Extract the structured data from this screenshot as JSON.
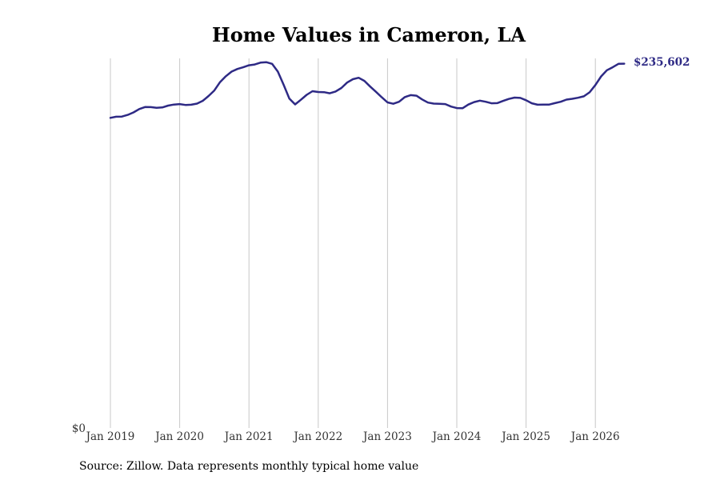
{
  "chart_data": {
    "type": "line",
    "title": "Home Values in Cameron, LA",
    "xlabel": "",
    "ylabel": "",
    "x_tick_labels": [
      "Jan 2019",
      "Jan 2020",
      "Jan 2021",
      "Jan 2022",
      "Jan 2023",
      "Jan 2024",
      "Jan 2025",
      "Jan 2026"
    ],
    "y_tick_labels": [
      "$0"
    ],
    "ylim": [
      0,
      238000
    ],
    "grid": "vertical",
    "line_color": "#2e2a85",
    "final_value_label": "$235,602",
    "source": "Source: Zillow. Data represents monthly typical home value",
    "series": [
      {
        "x": [
          "2019-01",
          "2019-02",
          "2019-03",
          "2019-04",
          "2019-05",
          "2019-06",
          "2019-07",
          "2019-08",
          "2019-09",
          "2019-10",
          "2019-11",
          "2019-12",
          "2020-01",
          "2020-02",
          "2020-03",
          "2020-04",
          "2020-05",
          "2020-06",
          "2020-07",
          "2020-08",
          "2020-09",
          "2020-10",
          "2020-11",
          "2020-12",
          "2021-01",
          "2021-02",
          "2021-03",
          "2021-04",
          "2021-05",
          "2021-06",
          "2021-07",
          "2021-08",
          "2021-09",
          "2021-10",
          "2021-11",
          "2021-12",
          "2022-01",
          "2022-02",
          "2022-03",
          "2022-04",
          "2022-05",
          "2022-06",
          "2022-07",
          "2022-08",
          "2022-09",
          "2022-10",
          "2022-11",
          "2022-12",
          "2023-01",
          "2023-02",
          "2023-03",
          "2023-04",
          "2023-05",
          "2023-06",
          "2023-07",
          "2023-08",
          "2023-09",
          "2023-10",
          "2023-11",
          "2023-12",
          "2024-01",
          "2024-02",
          "2024-03",
          "2024-04",
          "2024-05",
          "2024-06",
          "2024-07",
          "2024-08",
          "2024-09",
          "2024-10",
          "2024-11",
          "2024-12",
          "2025-01",
          "2025-02",
          "2025-03",
          "2025-04",
          "2025-05",
          "2025-06",
          "2025-07",
          "2025-08",
          "2025-09",
          "2025-10",
          "2025-11",
          "2025-12",
          "2026-01",
          "2026-02",
          "2026-03",
          "2026-04",
          "2026-05",
          "2026-06"
        ],
        "values": [
          200600,
          201300,
          201400,
          202500,
          204100,
          206300,
          207600,
          207500,
          207100,
          207300,
          208500,
          209200,
          209500,
          208900,
          209100,
          209800,
          211600,
          214700,
          218300,
          223700,
          227500,
          230500,
          232200,
          233300,
          234600,
          235100,
          236300,
          236600,
          235500,
          230500,
          222000,
          213000,
          209300,
          212300,
          215500,
          217800,
          217300,
          217200,
          216500,
          217600,
          219900,
          223400,
          225600,
          226500,
          224500,
          220800,
          217400,
          213900,
          210600,
          209700,
          211000,
          214000,
          215300,
          214900,
          212500,
          210500,
          209800,
          209700,
          209500,
          207900,
          206900,
          206800,
          209200,
          210800,
          211700,
          211000,
          210000,
          210100,
          211500,
          212800,
          213700,
          213500,
          212000,
          210000,
          209100,
          209200,
          209200,
          210100,
          211000,
          212400,
          212900,
          213600,
          214500,
          217100,
          221800,
          227400,
          231400,
          233300,
          235500,
          235602
        ]
      }
    ]
  }
}
